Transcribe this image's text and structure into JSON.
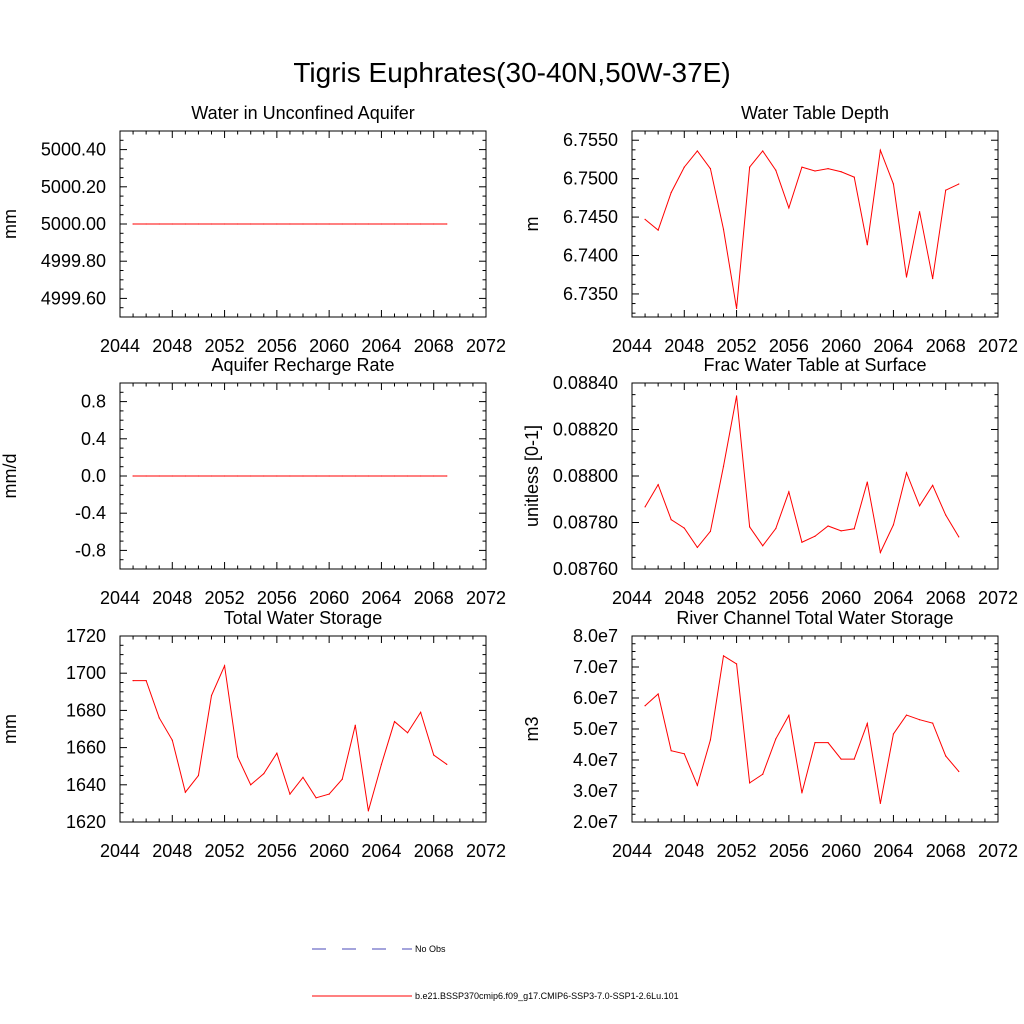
{
  "figure": {
    "title": "Tigris Euphrates(30-40N,50W-37E)"
  },
  "chart_data": [
    {
      "type": "line",
      "title": "Water in Unconfined Aquifer",
      "ylabel": "mm",
      "xlim": [
        2044,
        2072
      ],
      "ylim": [
        4999.5,
        5000.5
      ],
      "xticks": [
        2044,
        2048,
        2052,
        2056,
        2060,
        2064,
        2068,
        2072
      ],
      "xtick_labels": [
        "2044",
        "2048",
        "2052",
        "2056",
        "2060",
        "2064",
        "2068",
        "2072"
      ],
      "yticks": [
        4999.6,
        4999.8,
        5000.0,
        5000.2,
        5000.4
      ],
      "ytick_labels": [
        "4999.60",
        "4999.80",
        "5000.00",
        "5000.20",
        "5000.40"
      ],
      "x": [
        2045,
        2046,
        2047,
        2048,
        2049,
        2050,
        2051,
        2052,
        2053,
        2054,
        2055,
        2056,
        2057,
        2058,
        2059,
        2060,
        2061,
        2062,
        2063,
        2064,
        2065,
        2066,
        2067,
        2068,
        2069
      ],
      "series": [
        {
          "values": [
            5000,
            5000,
            5000,
            5000,
            5000,
            5000,
            5000,
            5000,
            5000,
            5000,
            5000,
            5000,
            5000,
            5000,
            5000,
            5000,
            5000,
            5000,
            5000,
            5000,
            5000,
            5000,
            5000,
            5000,
            5000
          ]
        }
      ]
    },
    {
      "type": "line",
      "title": "Water Table Depth",
      "ylabel": "m",
      "xlim": [
        2044,
        2072
      ],
      "ylim": [
        6.732,
        6.7562
      ],
      "xticks": [
        2044,
        2048,
        2052,
        2056,
        2060,
        2064,
        2068,
        2072
      ],
      "xtick_labels": [
        "2044",
        "2048",
        "2052",
        "2056",
        "2060",
        "2064",
        "2068",
        "2072"
      ],
      "yticks": [
        6.735,
        6.74,
        6.745,
        6.75,
        6.755
      ],
      "ytick_labels": [
        "6.7350",
        "6.7400",
        "6.7450",
        "6.7500",
        "6.7550"
      ],
      "x": [
        2045,
        2046,
        2047,
        2048,
        2049,
        2050,
        2051,
        2052,
        2053,
        2054,
        2055,
        2056,
        2057,
        2058,
        2059,
        2060,
        2061,
        2062,
        2063,
        2064,
        2065,
        2066,
        2067,
        2068,
        2069
      ],
      "series": [
        {
          "values": [
            6.7447,
            6.7433,
            6.7482,
            6.7515,
            6.7536,
            6.7513,
            6.7434,
            6.7331,
            6.7515,
            6.7536,
            6.7511,
            6.7462,
            6.7515,
            6.751,
            6.7513,
            6.7509,
            6.7502,
            6.7414,
            6.7537,
            6.7493,
            6.7372,
            6.7457,
            6.737,
            6.7485,
            6.7493
          ]
        }
      ]
    },
    {
      "type": "line",
      "title": "Aquifer Recharge Rate",
      "ylabel": "mm/d",
      "xlim": [
        2044,
        2072
      ],
      "ylim": [
        -1.0,
        1.0
      ],
      "xticks": [
        2044,
        2048,
        2052,
        2056,
        2060,
        2064,
        2068,
        2072
      ],
      "xtick_labels": [
        "2044",
        "2048",
        "2052",
        "2056",
        "2060",
        "2064",
        "2068",
        "2072"
      ],
      "yticks": [
        -0.8,
        -0.4,
        0.0,
        0.4,
        0.8
      ],
      "ytick_labels": [
        "-0.8",
        "-0.4",
        "0.0",
        "0.4",
        "0.8"
      ],
      "x": [
        2045,
        2046,
        2047,
        2048,
        2049,
        2050,
        2051,
        2052,
        2053,
        2054,
        2055,
        2056,
        2057,
        2058,
        2059,
        2060,
        2061,
        2062,
        2063,
        2064,
        2065,
        2066,
        2067,
        2068,
        2069
      ],
      "series": [
        {
          "values": [
            0,
            0,
            0,
            0,
            0,
            0,
            0,
            0,
            0,
            0,
            0,
            0,
            0,
            0,
            0,
            0,
            0,
            0,
            0,
            0,
            0,
            0,
            0,
            0,
            0
          ]
        }
      ]
    },
    {
      "type": "line",
      "title": "Frac Water Table at Surface",
      "ylabel": "unitless [0-1]",
      "xlim": [
        2044,
        2072
      ],
      "ylim": [
        0.0876,
        0.0884
      ],
      "xticks": [
        2044,
        2048,
        2052,
        2056,
        2060,
        2064,
        2068,
        2072
      ],
      "xtick_labels": [
        "2044",
        "2048",
        "2052",
        "2056",
        "2060",
        "2064",
        "2068",
        "2072"
      ],
      "yticks": [
        0.0876,
        0.0878,
        0.088,
        0.0882,
        0.0884
      ],
      "ytick_labels": [
        "0.08760",
        "0.08780",
        "0.08800",
        "0.08820",
        "0.08840"
      ],
      "x": [
        2045,
        2046,
        2047,
        2048,
        2049,
        2050,
        2051,
        2052,
        2053,
        2054,
        2055,
        2056,
        2057,
        2058,
        2059,
        2060,
        2061,
        2062,
        2063,
        2064,
        2065,
        2066,
        2067,
        2068,
        2069
      ],
      "series": [
        {
          "values": [
            0.087867,
            0.087963,
            0.087812,
            0.087776,
            0.087693,
            0.087762,
            0.088042,
            0.088344,
            0.087781,
            0.0877,
            0.087774,
            0.087932,
            0.087715,
            0.087741,
            0.087785,
            0.087764,
            0.087773,
            0.087974,
            0.087671,
            0.08779,
            0.088014,
            0.087872,
            0.08796,
            0.087832,
            0.087738
          ]
        }
      ]
    },
    {
      "type": "line",
      "title": "Total Water Storage",
      "ylabel": "mm",
      "xlim": [
        2044,
        2072
      ],
      "ylim": [
        1620,
        1720
      ],
      "xticks": [
        2044,
        2048,
        2052,
        2056,
        2060,
        2064,
        2068,
        2072
      ],
      "xtick_labels": [
        "2044",
        "2048",
        "2052",
        "2056",
        "2060",
        "2064",
        "2068",
        "2072"
      ],
      "yticks": [
        1620,
        1640,
        1660,
        1680,
        1700,
        1720
      ],
      "ytick_labels": [
        "1620",
        "1640",
        "1660",
        "1680",
        "1700",
        "1720"
      ],
      "x": [
        2045,
        2046,
        2047,
        2048,
        2049,
        2050,
        2051,
        2052,
        2053,
        2054,
        2055,
        2056,
        2057,
        2058,
        2059,
        2060,
        2061,
        2062,
        2063,
        2064,
        2065,
        2066,
        2067,
        2068,
        2069
      ],
      "series": [
        {
          "values": [
            1696,
            1696,
            1676,
            1664,
            1636,
            1645,
            1688,
            1704,
            1655,
            1640,
            1646,
            1657,
            1635,
            1644,
            1633,
            1635,
            1643,
            1672,
            1626,
            1651,
            1674,
            1668,
            1679,
            1656,
            1651
          ]
        }
      ]
    },
    {
      "type": "line",
      "title": "River Channel Total Water Storage",
      "ylabel": "m3",
      "xlim": [
        2044,
        2072
      ],
      "ylim": [
        20000000,
        80000000
      ],
      "xticks": [
        2044,
        2048,
        2052,
        2056,
        2060,
        2064,
        2068,
        2072
      ],
      "xtick_labels": [
        "2044",
        "2048",
        "2052",
        "2056",
        "2060",
        "2064",
        "2068",
        "2072"
      ],
      "yticks": [
        20000000,
        30000000,
        40000000,
        50000000,
        60000000,
        70000000,
        80000000
      ],
      "ytick_labels": [
        "2.0e7",
        "3.0e7",
        "4.0e7",
        "5.0e7",
        "6.0e7",
        "7.0e7",
        "8.0e7"
      ],
      "x": [
        2045,
        2046,
        2047,
        2048,
        2049,
        2050,
        2051,
        2052,
        2053,
        2054,
        2055,
        2056,
        2057,
        2058,
        2059,
        2060,
        2061,
        2062,
        2063,
        2064,
        2065,
        2066,
        2067,
        2068,
        2069
      ],
      "series": [
        {
          "values": [
            57500000,
            61300000,
            43000000,
            42000000,
            31800000,
            46500000,
            73600000,
            71000000,
            32600000,
            35400000,
            46800000,
            54400000,
            29400000,
            45600000,
            45600000,
            40300000,
            40300000,
            51800000,
            26000000,
            48400000,
            54500000,
            53000000,
            51900000,
            41300000,
            36300000
          ]
        }
      ]
    }
  ],
  "legend": {
    "entries": [
      {
        "label": "No Obs",
        "color": "#4a4ab8",
        "style": "dashed"
      },
      {
        "label": "b.e21.BSSP370cmip6.f09_g17.CMIP6-SSP3-7.0-SSP1-2.6Lu.101",
        "color": "#ff0000",
        "style": "solid"
      }
    ]
  },
  "colors": {
    "series_line": "#ff0000",
    "axis": "#000000"
  }
}
